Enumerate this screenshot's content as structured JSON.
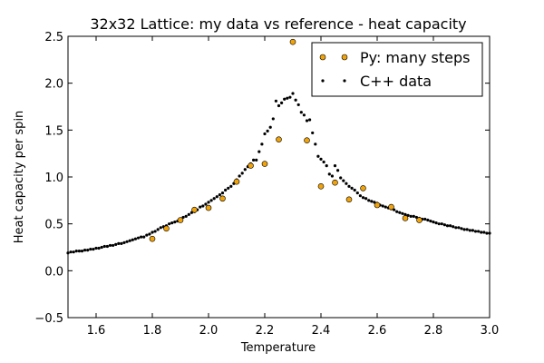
{
  "chart_data": {
    "type": "scatter",
    "title": "32x32 Lattice: my data vs reference - heat capacity",
    "xlabel": "Temperature",
    "ylabel": "Heat capacity per spin",
    "xlim": [
      1.5,
      3.0
    ],
    "ylim": [
      -0.5,
      2.5
    ],
    "xticks": [
      1.6,
      1.8,
      2.0,
      2.2,
      2.4,
      2.6,
      2.8,
      3.0
    ],
    "xtick_labels": [
      "1.6",
      "1.8",
      "2.0",
      "2.2",
      "2.4",
      "2.6",
      "2.8",
      "3.0"
    ],
    "yticks": [
      -0.5,
      0.0,
      0.5,
      1.0,
      1.5,
      2.0,
      2.5
    ],
    "ytick_labels": [
      "−0.5",
      "0.0",
      "0.5",
      "1.0",
      "1.5",
      "2.0",
      "2.5"
    ],
    "grid": false,
    "legend_position": "top-right",
    "series": [
      {
        "name": "Py: many steps",
        "marker": "circle",
        "color": "#f0a30a",
        "points": [
          [
            1.8,
            0.34
          ],
          [
            1.85,
            0.45
          ],
          [
            1.9,
            0.54
          ],
          [
            1.95,
            0.65
          ],
          [
            2.0,
            0.67
          ],
          [
            2.05,
            0.77
          ],
          [
            2.1,
            0.95
          ],
          [
            2.15,
            1.12
          ],
          [
            2.2,
            1.14
          ],
          [
            2.25,
            1.4
          ],
          [
            2.3,
            2.44
          ],
          [
            2.35,
            1.39
          ],
          [
            2.4,
            0.9
          ],
          [
            2.45,
            0.94
          ],
          [
            2.5,
            0.76
          ],
          [
            2.55,
            0.88
          ],
          [
            2.6,
            0.7
          ],
          [
            2.65,
            0.68
          ],
          [
            2.7,
            0.56
          ],
          [
            2.75,
            0.54
          ]
        ]
      },
      {
        "name": "C++ data",
        "marker": "dot",
        "color": "#000000",
        "points": [
          [
            1.5,
            0.19
          ],
          [
            1.51,
            0.2
          ],
          [
            1.52,
            0.2
          ],
          [
            1.53,
            0.21
          ],
          [
            1.54,
            0.21
          ],
          [
            1.55,
            0.21
          ],
          [
            1.56,
            0.22
          ],
          [
            1.57,
            0.22
          ],
          [
            1.58,
            0.23
          ],
          [
            1.59,
            0.23
          ],
          [
            1.6,
            0.24
          ],
          [
            1.61,
            0.24
          ],
          [
            1.62,
            0.25
          ],
          [
            1.63,
            0.26
          ],
          [
            1.64,
            0.26
          ],
          [
            1.65,
            0.27
          ],
          [
            1.66,
            0.27
          ],
          [
            1.67,
            0.28
          ],
          [
            1.68,
            0.29
          ],
          [
            1.69,
            0.29
          ],
          [
            1.7,
            0.3
          ],
          [
            1.71,
            0.31
          ],
          [
            1.72,
            0.32
          ],
          [
            1.73,
            0.33
          ],
          [
            1.74,
            0.34
          ],
          [
            1.75,
            0.35
          ],
          [
            1.76,
            0.36
          ],
          [
            1.77,
            0.36
          ],
          [
            1.78,
            0.38
          ],
          [
            1.79,
            0.39
          ],
          [
            1.8,
            0.41
          ],
          [
            1.81,
            0.42
          ],
          [
            1.82,
            0.44
          ],
          [
            1.83,
            0.46
          ],
          [
            1.84,
            0.47
          ],
          [
            1.85,
            0.48
          ],
          [
            1.86,
            0.5
          ],
          [
            1.87,
            0.51
          ],
          [
            1.88,
            0.52
          ],
          [
            1.89,
            0.53
          ],
          [
            1.9,
            0.55
          ],
          [
            1.91,
            0.57
          ],
          [
            1.92,
            0.58
          ],
          [
            1.93,
            0.6
          ],
          [
            1.94,
            0.62
          ],
          [
            1.95,
            0.63
          ],
          [
            1.96,
            0.65
          ],
          [
            1.97,
            0.68
          ],
          [
            1.98,
            0.69
          ],
          [
            1.99,
            0.71
          ],
          [
            2.0,
            0.73
          ],
          [
            2.01,
            0.75
          ],
          [
            2.02,
            0.77
          ],
          [
            2.03,
            0.79
          ],
          [
            2.04,
            0.81
          ],
          [
            2.05,
            0.83
          ],
          [
            2.06,
            0.86
          ],
          [
            2.07,
            0.88
          ],
          [
            2.08,
            0.9
          ],
          [
            2.09,
            0.93
          ],
          [
            2.1,
            0.97
          ],
          [
            2.11,
            1.01
          ],
          [
            2.12,
            1.04
          ],
          [
            2.13,
            1.08
          ],
          [
            2.14,
            1.11
          ],
          [
            2.15,
            1.14
          ],
          [
            2.16,
            1.18
          ],
          [
            2.17,
            1.18
          ],
          [
            2.18,
            1.27
          ],
          [
            2.19,
            1.35
          ],
          [
            2.2,
            1.46
          ],
          [
            2.21,
            1.49
          ],
          [
            2.22,
            1.53
          ],
          [
            2.23,
            1.62
          ],
          [
            2.24,
            1.81
          ],
          [
            2.25,
            1.76
          ],
          [
            2.26,
            1.79
          ],
          [
            2.27,
            1.83
          ],
          [
            2.28,
            1.84
          ],
          [
            2.29,
            1.85
          ],
          [
            2.3,
            1.89
          ],
          [
            2.31,
            1.82
          ],
          [
            2.32,
            1.77
          ],
          [
            2.33,
            1.69
          ],
          [
            2.34,
            1.66
          ],
          [
            2.35,
            1.6
          ],
          [
            2.36,
            1.61
          ],
          [
            2.37,
            1.47
          ],
          [
            2.38,
            1.35
          ],
          [
            2.39,
            1.22
          ],
          [
            2.4,
            1.19
          ],
          [
            2.41,
            1.16
          ],
          [
            2.42,
            1.12
          ],
          [
            2.43,
            1.03
          ],
          [
            2.44,
            1.01
          ],
          [
            2.45,
            1.12
          ],
          [
            2.46,
            1.07
          ],
          [
            2.47,
            0.99
          ],
          [
            2.48,
            0.96
          ],
          [
            2.49,
            0.93
          ],
          [
            2.5,
            0.9
          ],
          [
            2.51,
            0.88
          ],
          [
            2.52,
            0.86
          ],
          [
            2.53,
            0.83
          ],
          [
            2.54,
            0.8
          ],
          [
            2.55,
            0.78
          ],
          [
            2.56,
            0.77
          ],
          [
            2.57,
            0.75
          ],
          [
            2.58,
            0.74
          ],
          [
            2.59,
            0.73
          ],
          [
            2.6,
            0.72
          ],
          [
            2.61,
            0.7
          ],
          [
            2.62,
            0.69
          ],
          [
            2.63,
            0.68
          ],
          [
            2.64,
            0.67
          ],
          [
            2.65,
            0.66
          ],
          [
            2.66,
            0.65
          ],
          [
            2.67,
            0.63
          ],
          [
            2.68,
            0.62
          ],
          [
            2.69,
            0.61
          ],
          [
            2.7,
            0.6
          ],
          [
            2.71,
            0.59
          ],
          [
            2.72,
            0.58
          ],
          [
            2.73,
            0.58
          ],
          [
            2.74,
            0.57
          ],
          [
            2.75,
            0.56
          ],
          [
            2.76,
            0.55
          ],
          [
            2.77,
            0.55
          ],
          [
            2.78,
            0.54
          ],
          [
            2.79,
            0.53
          ],
          [
            2.8,
            0.52
          ],
          [
            2.81,
            0.51
          ],
          [
            2.82,
            0.5
          ],
          [
            2.83,
            0.5
          ],
          [
            2.84,
            0.49
          ],
          [
            2.85,
            0.48
          ],
          [
            2.86,
            0.48
          ],
          [
            2.87,
            0.47
          ],
          [
            2.88,
            0.46
          ],
          [
            2.89,
            0.46
          ],
          [
            2.9,
            0.45
          ],
          [
            2.91,
            0.44
          ],
          [
            2.92,
            0.44
          ],
          [
            2.93,
            0.43
          ],
          [
            2.94,
            0.43
          ],
          [
            2.95,
            0.42
          ],
          [
            2.96,
            0.42
          ],
          [
            2.97,
            0.41
          ],
          [
            2.98,
            0.41
          ],
          [
            2.99,
            0.4
          ],
          [
            3.0,
            0.4
          ]
        ]
      }
    ]
  }
}
